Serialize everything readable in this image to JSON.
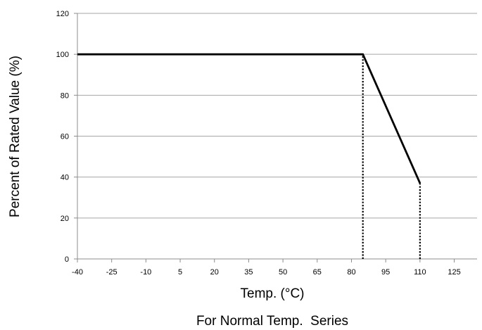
{
  "chart_data": {
    "type": "line",
    "title": "",
    "caption": "For Normal Temp.  Series",
    "xlabel": "Temp. (°C)",
    "ylabel": "Percent of Rated Value (%)",
    "x_ticks": [
      "-40",
      "-25",
      "-10",
      "5",
      "20",
      "35",
      "50",
      "65",
      "80",
      "95",
      "110",
      "125"
    ],
    "y_ticks": [
      "0",
      "20",
      "40",
      "60",
      "80",
      "100",
      "120"
    ],
    "xlim": [
      -40,
      135
    ],
    "ylim": [
      0,
      120
    ],
    "grid": "horizontal",
    "legend": "none",
    "series": [
      {
        "points": [
          [
            -40,
            100
          ],
          [
            85,
            100
          ],
          [
            110,
            37
          ]
        ],
        "color": "#000000",
        "style": "solid"
      }
    ],
    "reference_lines": [
      {
        "x": 85,
        "y_from": 0,
        "y_to": 100,
        "style": "dotted",
        "color": "#000000"
      },
      {
        "x": 110,
        "y_from": 0,
        "y_to": 37,
        "style": "dotted",
        "color": "#000000"
      }
    ],
    "colors": {
      "line": "#000000",
      "grid": "#a6a6a6",
      "axis": "#8c8c8c"
    }
  }
}
